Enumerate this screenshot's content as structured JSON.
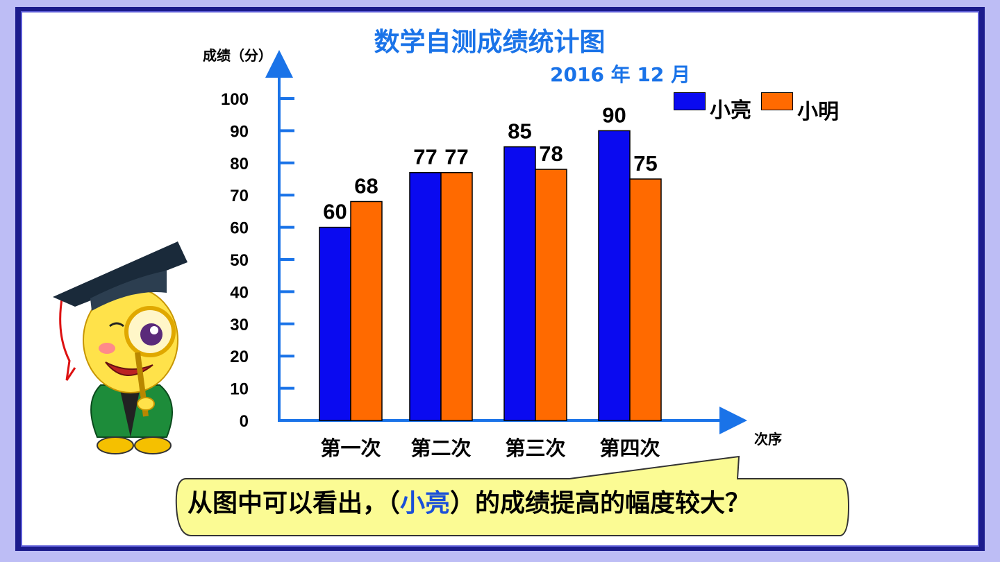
{
  "chart_data": {
    "type": "bar",
    "title": "数学自测成绩统计图",
    "subtitle": "2016 年 12 月",
    "ylabel": "成绩（分）",
    "xlabel": "次序",
    "categories": [
      "第一次",
      "第二次",
      "第三次",
      "第四次"
    ],
    "yticks": [
      "100",
      "90",
      "80",
      "70",
      "60",
      "50",
      "40",
      "30",
      "20",
      "10",
      "0"
    ],
    "ylim": [
      0,
      100
    ],
    "series": [
      {
        "name": "小亮",
        "color": "#0a0af0",
        "values": [
          60,
          77,
          85,
          90
        ],
        "labels": [
          "60",
          "77",
          "85",
          "90"
        ]
      },
      {
        "name": "小明",
        "color": "#ff6a00",
        "values": [
          68,
          77,
          78,
          75
        ],
        "labels": [
          "68",
          "77",
          "78",
          "75"
        ]
      }
    ],
    "legend_position": "top-right",
    "axis_color": "#1a73e8"
  },
  "callout": {
    "before": "从图中可以看出，（",
    "answer": "小亮",
    "after": "）的成绩提高的幅度较大？"
  },
  "mascot": {
    "icon": "graduate-mascot-with-magnifier-icon"
  }
}
